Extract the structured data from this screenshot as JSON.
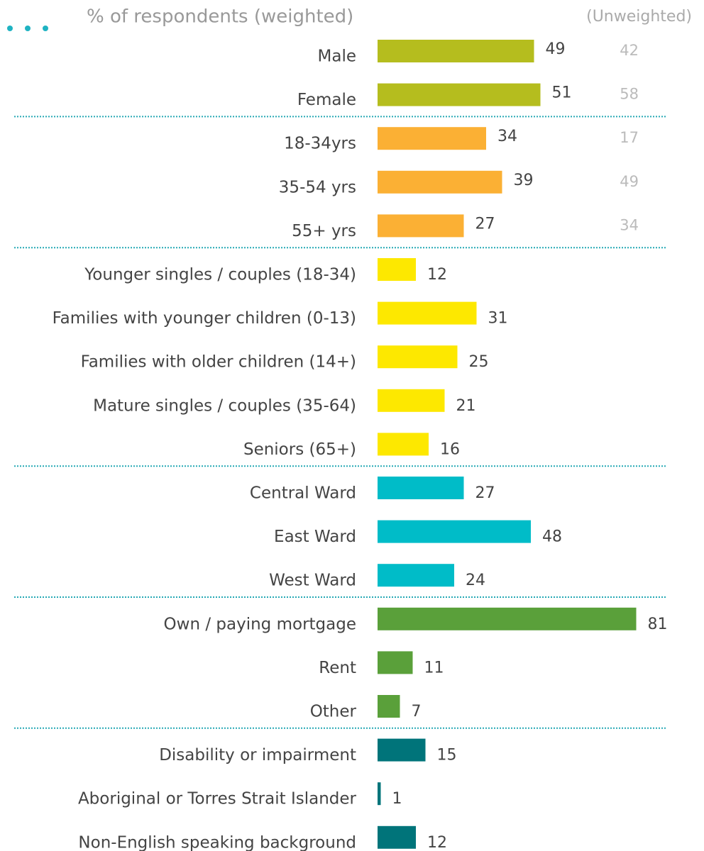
{
  "chart_data": {
    "type": "bar",
    "title": "% of respondents (weighted)",
    "unweighted_title": "(Unweighted)",
    "groups": [
      {
        "color": "#b5bd1e",
        "categories": [
          "Male",
          "Female"
        ],
        "values": [
          49,
          51
        ],
        "unweighted": [
          42,
          58
        ]
      },
      {
        "color": "#fbb034",
        "categories": [
          "18-34yrs",
          "35-54 yrs",
          "55+ yrs"
        ],
        "values": [
          34,
          39,
          27
        ],
        "unweighted": [
          17,
          49,
          34
        ]
      },
      {
        "color": "#fde800",
        "categories": [
          "Younger singles / couples (18-34)",
          "Families with younger children (0-13)",
          "Families with older children (14+)",
          "Mature singles / couples (35-64)",
          "Seniors (65+)"
        ],
        "values": [
          12,
          31,
          25,
          21,
          16
        ]
      },
      {
        "color": "#00bcc8",
        "categories": [
          "Central Ward",
          "East Ward",
          "West Ward"
        ],
        "values": [
          27,
          48,
          24
        ]
      },
      {
        "color": "#5aa03a",
        "categories": [
          "Own / paying mortgage",
          "Rent",
          "Other"
        ],
        "values": [
          81,
          11,
          7
        ]
      },
      {
        "color": "#00747a",
        "categories": [
          "Disability or impairment",
          "Aboriginal or Torres Strait Islander",
          "Non-English speaking background"
        ],
        "values": [
          15,
          1,
          12
        ]
      }
    ]
  }
}
